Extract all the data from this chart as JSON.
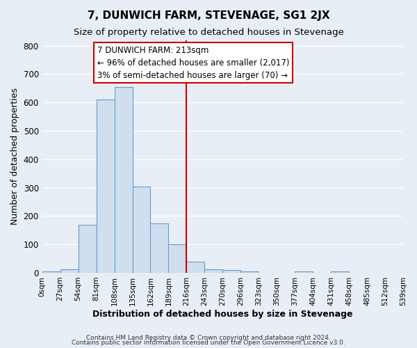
{
  "title": "7, DUNWICH FARM, STEVENAGE, SG1 2JX",
  "subtitle": "Size of property relative to detached houses in Stevenage",
  "xlabel": "Distribution of detached houses by size in Stevenage",
  "ylabel": "Number of detached properties",
  "bar_color": "#d0dff0",
  "bar_edge_color": "#6699cc",
  "bin_edges": [
    0,
    27,
    54,
    81,
    108,
    135,
    162,
    189,
    216,
    243,
    270,
    297,
    324,
    351,
    378,
    405,
    432,
    459,
    486,
    513,
    540
  ],
  "bar_heights": [
    5,
    12,
    170,
    610,
    655,
    305,
    175,
    100,
    40,
    12,
    10,
    5,
    0,
    0,
    5,
    0,
    5,
    0,
    0,
    0
  ],
  "tick_labels": [
    "0sqm",
    "27sqm",
    "54sqm",
    "81sqm",
    "108sqm",
    "135sqm",
    "162sqm",
    "189sqm",
    "216sqm",
    "243sqm",
    "270sqm",
    "296sqm",
    "323sqm",
    "350sqm",
    "377sqm",
    "404sqm",
    "431sqm",
    "458sqm",
    "485sqm",
    "512sqm",
    "539sqm"
  ],
  "vline_x": 216,
  "vline_color": "#cc0000",
  "annotation_line1": "7 DUNWICH FARM: 213sqm",
  "annotation_line2": "← 96% of detached houses are smaller (2,017)",
  "annotation_line3": "3% of semi-detached houses are larger (70) →",
  "box_edge_color": "#cc0000",
  "footnote1": "Contains HM Land Registry data © Crown copyright and database right 2024.",
  "footnote2": "Contains public sector information licensed under the Open Government Licence v3.0.",
  "ylim": [
    0,
    820
  ],
  "yticks": [
    0,
    100,
    200,
    300,
    400,
    500,
    600,
    700,
    800
  ],
  "background_color": "#e8eef5",
  "plot_bg_color": "#e8eef5",
  "grid_color": "#ffffff",
  "title_fontsize": 11,
  "subtitle_fontsize": 9.5,
  "axis_label_fontsize": 9,
  "tick_fontsize": 7.5
}
